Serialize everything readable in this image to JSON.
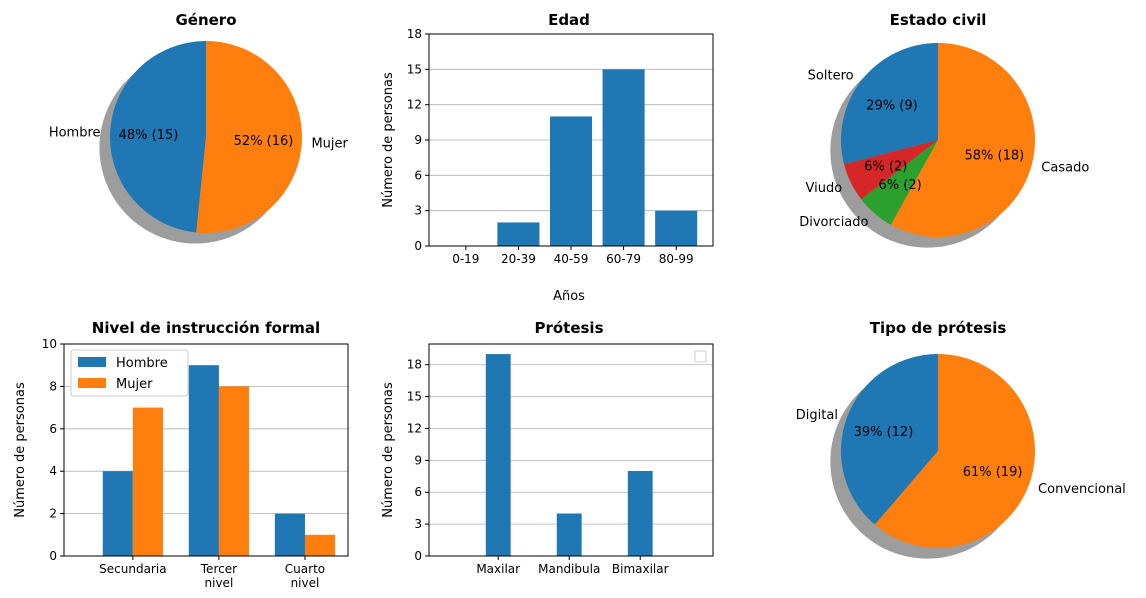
{
  "colors": {
    "blue": "#1f77b4",
    "orange": "#ff7f0e",
    "green": "#2ca02c",
    "red": "#d62728",
    "grid": "#b0b0b0"
  },
  "chart_data": [
    {
      "id": "genero",
      "type": "pie",
      "title": "Género",
      "labels": [
        "Hombre",
        "Mujer"
      ],
      "values": [
        15,
        16
      ],
      "autopct": [
        "48% (15)",
        "52% (16)"
      ],
      "colors": [
        "#1f77b4",
        "#ff7f0e"
      ],
      "start_angle_deg": 90,
      "shadow": true
    },
    {
      "id": "edad",
      "type": "bar",
      "title": "Edad",
      "categories": [
        "0-19",
        "20-39",
        "40-59",
        "60-79",
        "80-99"
      ],
      "values": [
        0,
        2,
        11,
        15,
        3
      ],
      "xlabel": "Años",
      "ylabel": "Número de personas",
      "ylim": [
        0,
        18
      ],
      "yticks": [
        0,
        3,
        6,
        9,
        12,
        15,
        18
      ],
      "grid": true
    },
    {
      "id": "estado_civil",
      "type": "pie",
      "title": "Estado civil",
      "labels": [
        "Soltero",
        "Viudo",
        "Divorciado",
        "Casado"
      ],
      "values": [
        9,
        2,
        2,
        18
      ],
      "autopct": [
        "29% (9)",
        "6% (2)",
        "6% (2)",
        "58% (18)"
      ],
      "colors": [
        "#1f77b4",
        "#d62728",
        "#2ca02c",
        "#ff7f0e"
      ],
      "start_angle_deg": 90,
      "shadow": true
    },
    {
      "id": "instruccion",
      "type": "bar",
      "title": "Nivel de instrucción formal",
      "categories": [
        "Secundaria",
        "Tercer\nnivel",
        "Cuarto\nnivel"
      ],
      "series": [
        {
          "name": "Hombre",
          "values": [
            4,
            9,
            2
          ]
        },
        {
          "name": "Mujer",
          "values": [
            7,
            8,
            1
          ]
        }
      ],
      "ylabel": "Número de personas",
      "ylim": [
        0,
        10
      ],
      "yticks": [
        0,
        2,
        4,
        6,
        8,
        10
      ],
      "legend": "top-left",
      "grid": true
    },
    {
      "id": "protesis",
      "type": "bar",
      "title": "Prótesis",
      "categories": [
        "Maxilar",
        "Mandibula",
        "Bimaxilar"
      ],
      "values": [
        19,
        4,
        8
      ],
      "ylabel": "Número de personas",
      "ylim": [
        0,
        19.95
      ],
      "yticks": [
        0,
        3,
        6,
        9,
        12,
        15,
        18
      ],
      "legend": "top-right (empty)",
      "grid": true
    },
    {
      "id": "tipo_protesis",
      "type": "pie",
      "title": "Tipo de prótesis",
      "labels": [
        "Digital",
        "Convencional"
      ],
      "values": [
        12,
        19
      ],
      "autopct": [
        "39% (12)",
        "61% (19)"
      ],
      "colors": [
        "#1f77b4",
        "#ff7f0e"
      ],
      "start_angle_deg": 90,
      "shadow": true
    }
  ]
}
